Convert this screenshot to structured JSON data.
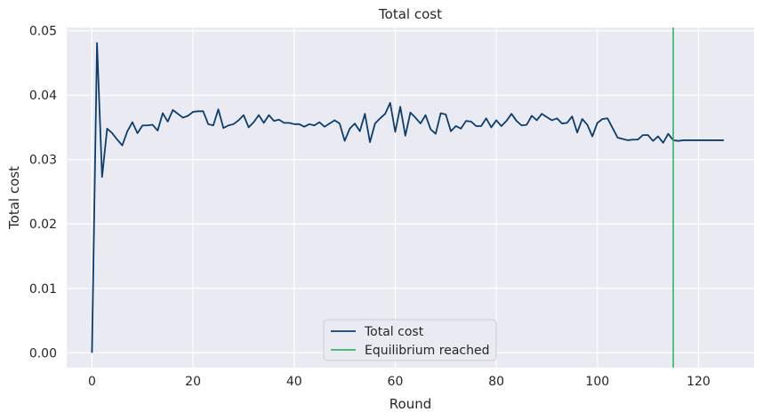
{
  "chart_data": {
    "type": "line",
    "title": "Total cost",
    "xlabel": "Round",
    "ylabel": "Total cost",
    "xlim": [
      -5,
      131
    ],
    "ylim": [
      -0.0023,
      0.0505
    ],
    "xticks": [
      0,
      20,
      40,
      60,
      80,
      100,
      120
    ],
    "yticks": [
      0.0,
      0.01,
      0.02,
      0.03,
      0.04,
      0.05
    ],
    "xtick_labels": [
      "0",
      "20",
      "40",
      "60",
      "80",
      "100",
      "120"
    ],
    "ytick_labels": [
      "0.00",
      "0.01",
      "0.02",
      "0.03",
      "0.04",
      "0.05"
    ],
    "grid": true,
    "background": "#eaeaf2",
    "legend_position": "bottom-center",
    "series": [
      {
        "name": "Total cost",
        "color": "#0b3d6e",
        "x": [
          0,
          1,
          2,
          3,
          4,
          5,
          6,
          7,
          8,
          9,
          10,
          11,
          12,
          13,
          14,
          15,
          16,
          17,
          18,
          19,
          20,
          21,
          22,
          23,
          24,
          25,
          26,
          27,
          28,
          29,
          30,
          31,
          32,
          33,
          34,
          35,
          36,
          37,
          38,
          39,
          40,
          41,
          42,
          43,
          44,
          45,
          46,
          47,
          48,
          49,
          50,
          51,
          52,
          53,
          54,
          55,
          56,
          57,
          58,
          59,
          60,
          61,
          62,
          63,
          64,
          65,
          66,
          67,
          68,
          69,
          70,
          71,
          72,
          73,
          74,
          75,
          76,
          77,
          78,
          79,
          80,
          81,
          82,
          83,
          84,
          85,
          86,
          87,
          88,
          89,
          90,
          91,
          92,
          93,
          94,
          95,
          96,
          97,
          98,
          99,
          100,
          101,
          102,
          103,
          104,
          105,
          106,
          107,
          108,
          109,
          110,
          111,
          112,
          113,
          114,
          115,
          116,
          117,
          118,
          119,
          120,
          121,
          122,
          123,
          124,
          125
        ],
        "values": [
          0.0,
          0.0481,
          0.0273,
          0.0348,
          0.0341,
          0.0331,
          0.0322,
          0.0344,
          0.0358,
          0.0341,
          0.0353,
          0.0353,
          0.0354,
          0.0345,
          0.0372,
          0.0359,
          0.0377,
          0.0371,
          0.0365,
          0.0368,
          0.0374,
          0.0375,
          0.0375,
          0.0355,
          0.0353,
          0.0378,
          0.0349,
          0.0353,
          0.0355,
          0.0361,
          0.0369,
          0.035,
          0.0358,
          0.0369,
          0.0357,
          0.0369,
          0.036,
          0.0362,
          0.0357,
          0.0357,
          0.0355,
          0.0355,
          0.0351,
          0.0355,
          0.0353,
          0.0358,
          0.0351,
          0.0356,
          0.0361,
          0.0356,
          0.0329,
          0.0348,
          0.0356,
          0.0344,
          0.0371,
          0.0327,
          0.0356,
          0.0364,
          0.0371,
          0.0388,
          0.0343,
          0.0382,
          0.0337,
          0.0373,
          0.0365,
          0.0356,
          0.0369,
          0.0347,
          0.034,
          0.0372,
          0.037,
          0.0344,
          0.0352,
          0.0348,
          0.036,
          0.0359,
          0.0352,
          0.0352,
          0.0364,
          0.035,
          0.0361,
          0.0352,
          0.036,
          0.0371,
          0.036,
          0.0353,
          0.0354,
          0.0368,
          0.0361,
          0.0371,
          0.0366,
          0.0361,
          0.0364,
          0.0356,
          0.0357,
          0.0367,
          0.0342,
          0.0363,
          0.0354,
          0.0336,
          0.0357,
          0.0363,
          0.0364,
          0.0349,
          0.0334,
          0.0332,
          0.033,
          0.0331,
          0.0331,
          0.0338,
          0.0338,
          0.0329,
          0.0336,
          0.0326,
          0.034,
          0.033,
          0.0329,
          0.033,
          0.033,
          0.033,
          0.033,
          0.033,
          0.033,
          0.033,
          0.033,
          0.033
        ]
      },
      {
        "name": "Equilibrium reached",
        "color": "#2eb86b",
        "type": "vline",
        "x": 115
      }
    ]
  }
}
